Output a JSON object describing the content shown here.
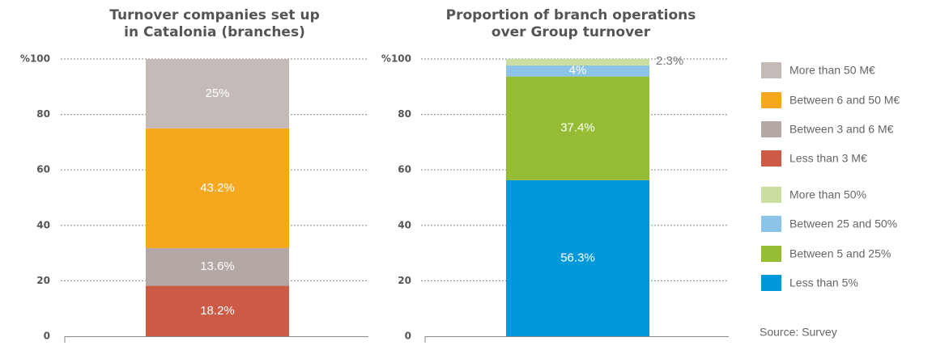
{
  "chart_data": [
    {
      "type": "stacked_bar",
      "title": [
        "Turnover companies set up",
        "in Catalonia (branches)"
      ],
      "ylim": [
        0,
        100
      ],
      "yticks": [
        0,
        20,
        40,
        60,
        80,
        {
          "value": 100,
          "label": "%100"
        }
      ],
      "grid": true,
      "series": [
        {
          "name": "Less than 3 M€",
          "color": "#cc5a45",
          "values": [
            18.2
          ],
          "value_labels": [
            "18.2%"
          ]
        },
        {
          "name": "Between 3 and 6 M€",
          "color": "#b3a8a3",
          "values": [
            13.6
          ],
          "value_labels": [
            "13.6%"
          ]
        },
        {
          "name": "Between 6 and 50 M€",
          "color": "#f5a71e",
          "values": [
            43.2
          ],
          "value_labels": [
            "43.2%"
          ]
        },
        {
          "name": "More than 50 M€",
          "color": "#c4bbb8",
          "values": [
            25
          ],
          "value_labels": [
            "25%"
          ]
        }
      ]
    },
    {
      "type": "stacked_bar",
      "title": [
        "Proportion of branch operations",
        "over Group turnover"
      ],
      "ylim": [
        0,
        100
      ],
      "yticks": [
        0,
        20,
        40,
        60,
        80,
        {
          "value": 100,
          "label": "%100"
        }
      ],
      "grid": true,
      "series": [
        {
          "name": "Less than 5%",
          "color": "#0098d8",
          "values": [
            56.3
          ],
          "value_labels": [
            "56.3%"
          ]
        },
        {
          "name": "Between 5 and 25%",
          "color": "#96bc35",
          "values": [
            37.4
          ],
          "value_labels": [
            "37.4%"
          ]
        },
        {
          "name": "Between 25 and 50%",
          "color": "#8cc4e8",
          "values": [
            4
          ],
          "value_labels": [
            "4%"
          ]
        },
        {
          "name": "More than 50%",
          "color": "#c9dea0",
          "values": [
            2.3
          ],
          "value_labels": [
            "2.3%"
          ]
        }
      ]
    }
  ],
  "source": "Source: Survey"
}
